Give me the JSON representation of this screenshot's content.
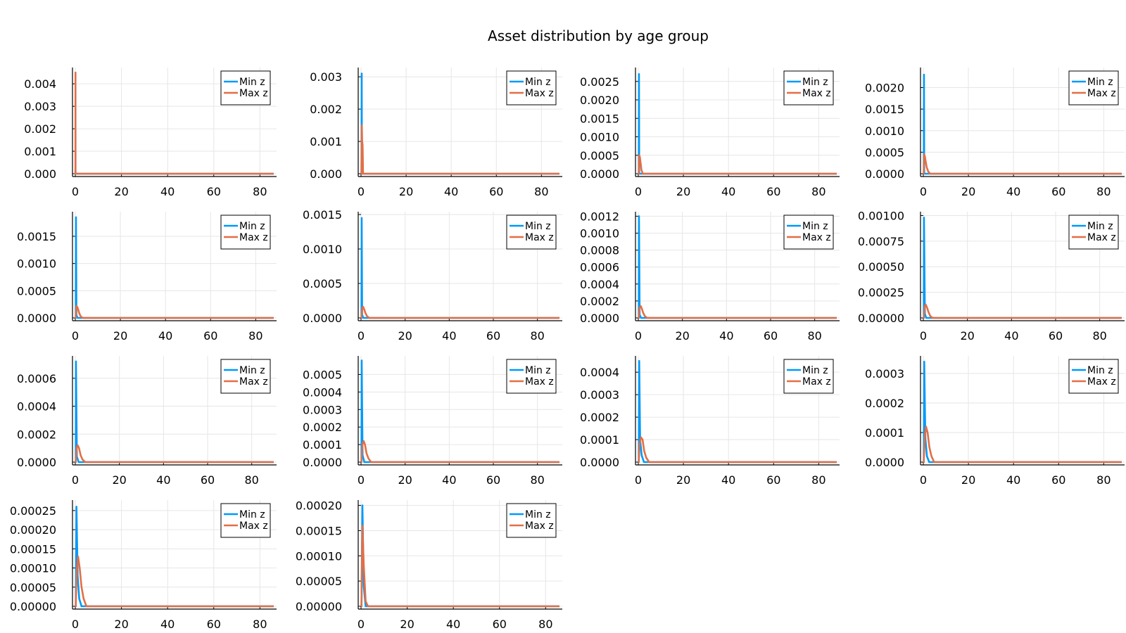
{
  "figure": {
    "title": "Asset distribution by age group",
    "colors": {
      "min_z": "#009af9",
      "max_z": "#e26f46",
      "grid": "#e6e6e6",
      "axis": "#000000"
    }
  },
  "chart_data": [
    {
      "type": "line",
      "xlim": [
        0,
        86
      ],
      "xticks": [
        0,
        20,
        40,
        60,
        80
      ],
      "ylim": [
        0,
        0.0046
      ],
      "yticks": [
        0.0,
        0.001,
        0.002,
        0.003,
        0.004
      ],
      "yticklabels": [
        "0.000",
        "0.001",
        "0.002",
        "0.003",
        "0.004"
      ],
      "grid": true,
      "legend": "top-right",
      "series": [
        {
          "name": "Min z",
          "x": [
            0,
            0.05,
            0.08,
            0.1,
            0.3,
            1,
            86
          ],
          "y": [
            0,
            0,
            0.00015,
            0,
            0,
            0,
            0
          ]
        },
        {
          "name": "Max z",
          "x": [
            0,
            0.05,
            0.08,
            0.1,
            0.3,
            1,
            86
          ],
          "y": [
            0,
            0,
            0.0045,
            0,
            0,
            0,
            0
          ]
        }
      ]
    },
    {
      "type": "line",
      "xlim": [
        0,
        88
      ],
      "xticks": [
        0,
        20,
        40,
        60,
        80
      ],
      "ylim": [
        0,
        0.0032
      ],
      "yticks": [
        0.0,
        0.001,
        0.002,
        0.003
      ],
      "yticklabels": [
        "0.000",
        "0.001",
        "0.002",
        "0.003"
      ],
      "grid": true,
      "legend": "top-right",
      "series": [
        {
          "name": "Min z",
          "x": [
            0,
            0.2,
            0.3,
            0.4,
            0.8,
            1.5,
            88
          ],
          "y": [
            0,
            0,
            0.0031,
            0,
            0,
            0,
            0
          ]
        },
        {
          "name": "Max z",
          "x": [
            0,
            0.2,
            0.35,
            0.5,
            0.7,
            0.9,
            1.1,
            88
          ],
          "y": [
            0,
            0,
            0.0015,
            0.001,
            0.0009,
            0,
            0,
            0
          ]
        }
      ]
    },
    {
      "type": "line",
      "xlim": [
        0,
        88
      ],
      "xticks": [
        0,
        20,
        40,
        60,
        80
      ],
      "ylim": [
        0,
        0.0028
      ],
      "yticks": [
        0.0,
        0.0005,
        0.001,
        0.0015,
        0.002,
        0.0025
      ],
      "yticklabels": [
        "0.0000",
        "0.0005",
        "0.0010",
        "0.0015",
        "0.0020",
        "0.0025"
      ],
      "grid": true,
      "legend": "top-right",
      "series": [
        {
          "name": "Min z",
          "x": [
            0,
            0.2,
            0.3,
            0.4,
            0.8,
            1.5,
            88
          ],
          "y": [
            0,
            0,
            0.0027,
            0,
            0,
            0,
            0
          ]
        },
        {
          "name": "Max z",
          "x": [
            0,
            0.2,
            0.4,
            0.7,
            1.0,
            1.4,
            2.0,
            88
          ],
          "y": [
            0,
            0,
            0.0005,
            0.00045,
            0.0003,
            0.0001,
            0,
            0
          ]
        }
      ]
    },
    {
      "type": "line",
      "xlim": [
        0,
        88
      ],
      "xticks": [
        0,
        20,
        40,
        60,
        80
      ],
      "ylim": [
        0,
        0.0024
      ],
      "yticks": [
        0.0,
        0.0005,
        0.001,
        0.0015,
        0.002
      ],
      "yticklabels": [
        "0.0000",
        "0.0005",
        "0.0010",
        "0.0015",
        "0.0020"
      ],
      "grid": true,
      "legend": "top-right",
      "series": [
        {
          "name": "Min z",
          "x": [
            0,
            0.2,
            0.3,
            0.4,
            0.8,
            1.5,
            88
          ],
          "y": [
            0,
            0,
            0.0023,
            0,
            0,
            0,
            0
          ]
        },
        {
          "name": "Max z",
          "x": [
            0,
            0.2,
            0.4,
            0.7,
            1.0,
            1.5,
            2.2,
            3.0,
            88
          ],
          "y": [
            0,
            0,
            0.00045,
            0.0004,
            0.0003,
            0.00015,
            5e-05,
            0,
            0
          ]
        }
      ]
    },
    {
      "type": "line",
      "xlim": [
        0,
        88
      ],
      "xticks": [
        0,
        20,
        40,
        60,
        80
      ],
      "ylim": [
        0,
        0.0019
      ],
      "yticks": [
        0.0,
        0.0005,
        0.001,
        0.0015
      ],
      "yticklabels": [
        "0.0000",
        "0.0005",
        "0.0010",
        "0.0015"
      ],
      "grid": true,
      "legend": "top-right",
      "series": [
        {
          "name": "Min z",
          "x": [
            0,
            0.2,
            0.3,
            0.5,
            1.0,
            2.0,
            88
          ],
          "y": [
            0,
            0,
            0.00185,
            5e-05,
            0,
            0,
            0
          ]
        },
        {
          "name": "Max z",
          "x": [
            0,
            0.2,
            0.5,
            0.9,
            1.3,
            1.8,
            2.5,
            3.5,
            88
          ],
          "y": [
            0,
            0,
            0.00022,
            0.0002,
            0.00015,
            8e-05,
            2e-05,
            0,
            0
          ]
        }
      ]
    },
    {
      "type": "line",
      "xlim": [
        0,
        90
      ],
      "xticks": [
        0,
        20,
        40,
        60,
        80
      ],
      "ylim": [
        0,
        0.0015
      ],
      "yticks": [
        0.0,
        0.0005,
        0.001,
        0.0015
      ],
      "yticklabels": [
        "0.0000",
        "0.0005",
        "0.0010",
        "0.0015"
      ],
      "grid": true,
      "legend": "top-right",
      "series": [
        {
          "name": "Min z",
          "x": [
            0,
            0.2,
            0.3,
            0.5,
            1.0,
            2.0,
            90
          ],
          "y": [
            0,
            0,
            0.00145,
            5e-05,
            0,
            0,
            0
          ]
        },
        {
          "name": "Max z",
          "x": [
            0,
            0.2,
            0.6,
            1.0,
            1.5,
            2.0,
            2.8,
            3.8,
            90
          ],
          "y": [
            0,
            0,
            0.00015,
            0.00016,
            0.00012,
            7e-05,
            2e-05,
            0,
            0
          ]
        }
      ]
    },
    {
      "type": "line",
      "xlim": [
        0,
        90
      ],
      "xticks": [
        0,
        20,
        40,
        60,
        80
      ],
      "ylim": [
        0,
        0.00122
      ],
      "yticks": [
        0.0,
        0.0002,
        0.0004,
        0.0006,
        0.0008,
        0.001,
        0.0012
      ],
      "yticklabels": [
        "0.0000",
        "0.0002",
        "0.0004",
        "0.0006",
        "0.0008",
        "0.0010",
        "0.0012"
      ],
      "grid": true,
      "legend": "top-right",
      "series": [
        {
          "name": "Min z",
          "x": [
            0,
            0.2,
            0.3,
            0.6,
            1.2,
            2.0,
            90
          ],
          "y": [
            0,
            0,
            0.0012,
            4e-05,
            0,
            0,
            0
          ]
        },
        {
          "name": "Max z",
          "x": [
            0,
            0.2,
            0.6,
            1.1,
            1.6,
            2.2,
            3.0,
            4.0,
            90
          ],
          "y": [
            0,
            0,
            0.00012,
            0.00014,
            0.00011,
            6e-05,
            2e-05,
            0,
            0
          ]
        }
      ]
    },
    {
      "type": "line",
      "xlim": [
        0,
        90
      ],
      "xticks": [
        0,
        20,
        40,
        60,
        80
      ],
      "ylim": [
        0,
        0.00101
      ],
      "yticks": [
        0.0,
        0.00025,
        0.0005,
        0.00075,
        0.001
      ],
      "yticklabels": [
        "0.00000",
        "0.00025",
        "0.00050",
        "0.00075",
        "0.00100"
      ],
      "grid": true,
      "legend": "top-right",
      "series": [
        {
          "name": "Min z",
          "x": [
            0,
            0.2,
            0.3,
            0.7,
            1.3,
            2.2,
            90
          ],
          "y": [
            0,
            0,
            0.00098,
            4e-05,
            0,
            0,
            0
          ]
        },
        {
          "name": "Max z",
          "x": [
            0,
            0.2,
            0.6,
            1.1,
            1.7,
            2.3,
            3.1,
            4.2,
            90
          ],
          "y": [
            0,
            0,
            0.00011,
            0.00013,
            0.0001,
            6e-05,
            2e-05,
            0,
            0
          ]
        }
      ]
    },
    {
      "type": "line",
      "xlim": [
        0,
        90
      ],
      "xticks": [
        0,
        20,
        40,
        60,
        80
      ],
      "ylim": [
        0,
        0.00074
      ],
      "yticks": [
        0.0,
        0.0002,
        0.0004,
        0.0006
      ],
      "yticklabels": [
        "0.0000",
        "0.0002",
        "0.0004",
        "0.0006"
      ],
      "grid": true,
      "legend": "top-right",
      "series": [
        {
          "name": "Min z",
          "x": [
            0,
            0.2,
            0.3,
            0.7,
            1.5,
            2.5,
            90
          ],
          "y": [
            0,
            0,
            0.00072,
            4e-05,
            0,
            0,
            0
          ]
        },
        {
          "name": "Max z",
          "x": [
            0,
            0.2,
            0.6,
            1.1,
            1.7,
            2.4,
            3.2,
            4.5,
            90
          ],
          "y": [
            0,
            0,
            0.0001,
            0.00012,
            0.0001,
            5e-05,
            2e-05,
            0,
            0
          ]
        }
      ]
    },
    {
      "type": "line",
      "xlim": [
        0,
        90
      ],
      "xticks": [
        0,
        20,
        40,
        60,
        80
      ],
      "ylim": [
        0,
        0.00059
      ],
      "yticks": [
        0.0,
        0.0001,
        0.0002,
        0.0003,
        0.0004,
        0.0005
      ],
      "yticklabels": [
        "0.0000",
        "0.0001",
        "0.0002",
        "0.0003",
        "0.0004",
        "0.0005"
      ],
      "grid": true,
      "legend": "top-right",
      "series": [
        {
          "name": "Min z",
          "x": [
            0,
            0.2,
            0.3,
            0.7,
            1.5,
            2.5,
            90
          ],
          "y": [
            0,
            0,
            0.00058,
            4e-05,
            0,
            0,
            0
          ]
        },
        {
          "name": "Max z",
          "x": [
            0,
            0.2,
            0.6,
            1.2,
            1.8,
            2.5,
            3.4,
            4.6,
            90
          ],
          "y": [
            0,
            0,
            0.0001,
            0.00012,
            0.0001,
            5e-05,
            2e-05,
            0,
            0
          ]
        }
      ]
    },
    {
      "type": "line",
      "xlim": [
        0,
        88
      ],
      "xticks": [
        0,
        20,
        40,
        60,
        80
      ],
      "ylim": [
        0,
        0.00046
      ],
      "yticks": [
        0.0,
        0.0001,
        0.0002,
        0.0003,
        0.0004
      ],
      "yticklabels": [
        "0.0000",
        "0.0001",
        "0.0002",
        "0.0003",
        "0.0004"
      ],
      "grid": true,
      "legend": "top-right",
      "series": [
        {
          "name": "Min z",
          "x": [
            0,
            0.2,
            0.4,
            0.8,
            1.5,
            2.5,
            3.5,
            88
          ],
          "y": [
            0,
            0,
            0.00045,
            0.0001,
            3e-05,
            0,
            0,
            0
          ]
        },
        {
          "name": "Max z",
          "x": [
            0,
            0.2,
            0.6,
            1.2,
            1.9,
            2.6,
            3.5,
            4.8,
            88
          ],
          "y": [
            0,
            0,
            8e-05,
            0.00011,
            0.0001,
            5e-05,
            2e-05,
            0,
            0
          ]
        }
      ]
    },
    {
      "type": "line",
      "xlim": [
        0,
        88
      ],
      "xticks": [
        0,
        20,
        40,
        60,
        80
      ],
      "ylim": [
        0,
        0.00035
      ],
      "yticks": [
        0.0,
        0.0001,
        0.0002,
        0.0003
      ],
      "yticklabels": [
        "0.0000",
        "0.0001",
        "0.0002",
        "0.0003"
      ],
      "grid": true,
      "legend": "top-right",
      "series": [
        {
          "name": "Min z",
          "x": [
            0,
            0.2,
            0.4,
            0.9,
            1.6,
            2.6,
            3.6,
            88
          ],
          "y": [
            0,
            0,
            0.00034,
            8e-05,
            2e-05,
            0,
            0,
            0
          ]
        },
        {
          "name": "Max z",
          "x": [
            0,
            0.2,
            0.6,
            1.2,
            1.9,
            2.7,
            3.6,
            4.8,
            88
          ],
          "y": [
            0,
            0,
            8e-05,
            0.00012,
            0.0001,
            5e-05,
            2e-05,
            0,
            0
          ]
        }
      ]
    },
    {
      "type": "line",
      "xlim": [
        0,
        86
      ],
      "xticks": [
        0,
        20,
        40,
        60,
        80
      ],
      "ylim": [
        0,
        0.00027
      ],
      "yticks": [
        0.0,
        5e-05,
        0.0001,
        0.00015,
        0.0002,
        0.00025
      ],
      "yticklabels": [
        "0.00000",
        "0.00005",
        "0.00010",
        "0.00015",
        "0.00020",
        "0.00025"
      ],
      "grid": true,
      "legend": "top-right",
      "series": [
        {
          "name": "Min z",
          "x": [
            0,
            0.2,
            0.5,
            1.0,
            1.7,
            2.7,
            3.7,
            86
          ],
          "y": [
            0,
            0,
            0.00026,
            8e-05,
            2e-05,
            0,
            0,
            0
          ]
        },
        {
          "name": "Max z",
          "x": [
            0,
            0.2,
            0.6,
            1.2,
            1.9,
            2.7,
            3.6,
            4.8,
            86
          ],
          "y": [
            0,
            0,
            9e-05,
            0.00013,
            0.0001,
            5e-05,
            2e-05,
            0,
            0
          ]
        }
      ]
    },
    {
      "type": "line",
      "xlim": [
        0,
        86
      ],
      "xticks": [
        0,
        20,
        40,
        60,
        80
      ],
      "ylim": [
        0,
        0.000205
      ],
      "yticks": [
        0.0,
        5e-05,
        0.0001,
        0.00015,
        0.0002
      ],
      "yticklabels": [
        "0.00000",
        "0.00005",
        "0.00010",
        "0.00015",
        "0.00020"
      ],
      "grid": true,
      "legend": "top-right",
      "series": [
        {
          "name": "Min z",
          "x": [
            0,
            0.2,
            0.6,
            1.2,
            2.0,
            3.0,
            86
          ],
          "y": [
            0,
            0,
            0.0002,
            4e-05,
            0,
            0,
            0
          ]
        },
        {
          "name": "Max z",
          "x": [
            0,
            0.2,
            0.6,
            1.2,
            2.0,
            3.0,
            86
          ],
          "y": [
            0,
            0,
            0.00016,
            8e-05,
            1e-05,
            0,
            0
          ]
        }
      ]
    }
  ]
}
